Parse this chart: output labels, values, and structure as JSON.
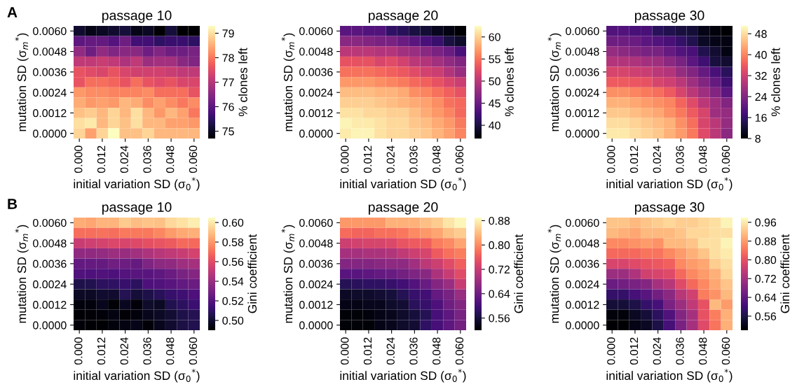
{
  "chart_data": [
    {
      "type": "heatmap",
      "title": "passage 10",
      "xlabel": "initial variation SD (σ$_{0}$$^{*}$)",
      "ylabel": "mutation SD (σ$_{m}$$^{*}$)",
      "clabel": "% clones left",
      "annotations": [
        "A"
      ],
      "categories": [
        "0.000",
        null,
        "0.012",
        null,
        "0.024",
        null,
        "0.036",
        null,
        "0.048",
        null,
        "0.060"
      ],
      "y_categories": [
        "0.0060",
        null,
        "0.0048",
        null,
        "0.0036",
        null,
        "0.0024",
        null,
        "0.0012",
        null,
        "0.0000"
      ],
      "clim": [
        74.7,
        79.3
      ],
      "cticks": [
        75,
        76,
        77,
        78,
        79
      ],
      "cells": [
        [
          75.1,
          74.9,
          75.0,
          75.1,
          75.2,
          74.9,
          75.0,
          74.7,
          75.2,
          74.7,
          74.7
        ],
        [
          76.0,
          76.1,
          76.1,
          75.9,
          76.2,
          75.7,
          75.7,
          75.5,
          75.6,
          75.6,
          75.5
        ],
        [
          76.6,
          76.2,
          76.6,
          76.4,
          76.5,
          76.5,
          76.2,
          76.4,
          76.2,
          76.2,
          76.3
        ],
        [
          77.1,
          77.1,
          77.2,
          77.1,
          76.9,
          77.1,
          76.7,
          76.8,
          76.8,
          76.5,
          76.4
        ],
        [
          77.6,
          77.5,
          77.4,
          77.6,
          77.4,
          77.3,
          77.3,
          77.3,
          77.2,
          77.1,
          77.1
        ],
        [
          77.6,
          77.9,
          77.9,
          77.8,
          77.6,
          77.9,
          77.6,
          77.5,
          77.6,
          77.4,
          77.4
        ],
        [
          78.3,
          78.2,
          78.2,
          78.1,
          78.1,
          78.1,
          78.2,
          77.9,
          77.9,
          77.9,
          77.6
        ],
        [
          78.5,
          78.3,
          78.4,
          78.3,
          78.6,
          78.5,
          78.2,
          78.4,
          78.2,
          78.0,
          78.2
        ],
        [
          78.7,
          78.8,
          78.6,
          78.9,
          78.6,
          79.0,
          78.6,
          78.3,
          78.6,
          78.4,
          78.0
        ],
        [
          79.0,
          79.1,
          78.6,
          78.9,
          78.7,
          79.0,
          78.6,
          78.6,
          78.4,
          78.4,
          78.3
        ],
        [
          78.9,
          78.4,
          78.9,
          79.3,
          78.7,
          78.7,
          78.9,
          78.6,
          78.6,
          78.6,
          78.6
        ]
      ]
    },
    {
      "type": "heatmap",
      "title": "passage 20",
      "xlabel": "initial variation SD (σ$_{0}$$^{*}$)",
      "ylabel": "mutation SD (σ$_{m}$$^{*}$)",
      "clabel": "% clones left",
      "categories": [
        "0.000",
        null,
        "0.012",
        null,
        "0.024",
        null,
        "0.036",
        null,
        "0.048",
        null,
        "0.060"
      ],
      "y_categories": [
        "0.0060",
        null,
        "0.0048",
        null,
        "0.0036",
        null,
        "0.0024",
        null,
        "0.0012",
        null,
        "0.0000"
      ],
      "clim": [
        37,
        62.5
      ],
      "cticks": [
        40,
        45,
        50,
        55,
        60
      ],
      "cells": [
        [
          44,
          44,
          43.5,
          43.5,
          41.5,
          41,
          40,
          39.5,
          38.5,
          37.8,
          37
        ],
        [
          47,
          47,
          46.5,
          46,
          46,
          45,
          44,
          43,
          42,
          40,
          39
        ],
        [
          50,
          50,
          50,
          49.5,
          49.5,
          48.5,
          48,
          47,
          46,
          45,
          43
        ],
        [
          53,
          53,
          53,
          52,
          52.5,
          51.5,
          50,
          49.5,
          48.5,
          47.5,
          46.5
        ],
        [
          55,
          55,
          55,
          54.5,
          54,
          53.5,
          52.5,
          51.5,
          51,
          49.5,
          48
        ],
        [
          57,
          57,
          57,
          56.5,
          56,
          55.5,
          54.5,
          54,
          53,
          52,
          51
        ],
        [
          59,
          59,
          59,
          58.5,
          58.5,
          58,
          56.5,
          56,
          55,
          54,
          53
        ],
        [
          60,
          60,
          60,
          59.5,
          59,
          58.5,
          58,
          57.5,
          56.5,
          55,
          54.5
        ],
        [
          61,
          61,
          60.5,
          60.5,
          60,
          60,
          59,
          58,
          57,
          56,
          54.5
        ],
        [
          62,
          61.5,
          61.5,
          61,
          60.5,
          60.5,
          59.5,
          59,
          58,
          57,
          55.5
        ],
        [
          61.5,
          62,
          62,
          61,
          60.5,
          60.5,
          60,
          59.5,
          58.5,
          57.5,
          56
        ]
      ]
    },
    {
      "type": "heatmap",
      "title": "passage 30",
      "xlabel": "initial variation SD (σ$_{0}$$^{*}$)",
      "ylabel": "mutation SD (σ$_{m}$$^{*}$)",
      "clabel": "% clones left",
      "categories": [
        "0.000",
        null,
        "0.012",
        null,
        "0.024",
        null,
        "0.036",
        null,
        "0.048",
        null,
        "0.060"
      ],
      "y_categories": [
        "0.0060",
        null,
        "0.0048",
        null,
        "0.0036",
        null,
        "0.0024",
        null,
        "0.0012",
        null,
        "0.0000"
      ],
      "clim": [
        8,
        51
      ],
      "cticks": [
        8,
        16,
        24,
        32,
        40,
        48
      ],
      "cells": [
        [
          19,
          19,
          18,
          18,
          15,
          14,
          13,
          12.5,
          10,
          9,
          8
        ],
        [
          22,
          22,
          21.5,
          20,
          19,
          18,
          16,
          14,
          11,
          10,
          9.5
        ],
        [
          26,
          25,
          24,
          23,
          23,
          21,
          19,
          18,
          14,
          12,
          9.5
        ],
        [
          29,
          29,
          28.5,
          27.5,
          27,
          25,
          23,
          20,
          17,
          13,
          12
        ],
        [
          33,
          33,
          32,
          31.5,
          30,
          29,
          26,
          24,
          21,
          18,
          15
        ],
        [
          36,
          36,
          35.5,
          35,
          33,
          32,
          30,
          27,
          24,
          21,
          17
        ],
        [
          41,
          41,
          40,
          39,
          38,
          36,
          33,
          30,
          27,
          24,
          20
        ],
        [
          44,
          44,
          43,
          42,
          41,
          40,
          37,
          34,
          30,
          27,
          24
        ],
        [
          46,
          46,
          45,
          44,
          43,
          41,
          39,
          36,
          33,
          27,
          26
        ],
        [
          48,
          48,
          47,
          46,
          45,
          44,
          41,
          38,
          33,
          30,
          26
        ],
        [
          49,
          49,
          48,
          47,
          46,
          44,
          42,
          39,
          34,
          30,
          25
        ]
      ]
    },
    {
      "type": "heatmap",
      "title": "passage 10",
      "xlabel": "initial variation SD (σ$_{0}$$^{*}$)",
      "ylabel": "mutation SD (σ$_{m}$$^{*}$)",
      "clabel": "Gini coefficient",
      "annotations": [
        "B"
      ],
      "categories": [
        "0.000",
        null,
        "0.012",
        null,
        "0.024",
        null,
        "0.036",
        null,
        "0.048",
        null,
        "0.060"
      ],
      "y_categories": [
        "0.0060",
        null,
        "0.0048",
        null,
        "0.0036",
        null,
        "0.0024",
        null,
        "0.0012",
        null,
        "0.0000"
      ],
      "clim": [
        0.49,
        0.605
      ],
      "cticks": [
        {
          "value": 0.5,
          "label": "0.50"
        },
        {
          "value": 0.52,
          "label": "0.52"
        },
        {
          "value": 0.54,
          "label": "0.54"
        },
        {
          "value": 0.56,
          "label": "0.56"
        },
        {
          "value": 0.58,
          "label": "0.58"
        },
        {
          "value": 0.6,
          "label": "0.60"
        }
      ],
      "cells": [
        [
          0.585,
          0.583,
          0.587,
          0.587,
          0.592,
          0.589,
          0.591,
          0.59,
          0.596,
          0.598,
          0.601
        ],
        [
          0.57,
          0.57,
          0.571,
          0.57,
          0.573,
          0.573,
          0.573,
          0.576,
          0.581,
          0.584,
          0.586
        ],
        [
          0.552,
          0.554,
          0.556,
          0.558,
          0.557,
          0.559,
          0.561,
          0.563,
          0.565,
          0.569,
          0.569
        ],
        [
          0.537,
          0.537,
          0.538,
          0.54,
          0.539,
          0.542,
          0.545,
          0.548,
          0.55,
          0.552,
          0.556
        ],
        [
          0.524,
          0.525,
          0.525,
          0.528,
          0.527,
          0.525,
          0.532,
          0.536,
          0.537,
          0.541,
          0.543
        ],
        [
          0.519,
          0.518,
          0.519,
          0.518,
          0.52,
          0.521,
          0.521,
          0.523,
          0.526,
          0.53,
          0.534
        ],
        [
          0.505,
          0.506,
          0.509,
          0.51,
          0.512,
          0.509,
          0.518,
          0.519,
          0.521,
          0.524,
          0.526
        ],
        [
          0.498,
          0.498,
          0.5,
          0.5,
          0.507,
          0.502,
          0.505,
          0.508,
          0.512,
          0.514,
          0.518
        ],
        [
          0.493,
          0.493,
          0.496,
          0.491,
          0.497,
          0.492,
          0.499,
          0.498,
          0.506,
          0.509,
          0.513
        ],
        [
          0.49,
          0.491,
          0.492,
          0.494,
          0.491,
          0.493,
          0.496,
          0.498,
          0.501,
          0.505,
          0.507
        ],
        [
          0.492,
          0.49,
          0.49,
          0.493,
          0.494,
          0.495,
          0.492,
          0.496,
          0.5,
          0.504,
          0.506
        ]
      ]
    },
    {
      "type": "heatmap",
      "title": "passage 20",
      "xlabel": "initial variation SD (σ$_{0}$$^{*}$)",
      "ylabel": "mutation SD (σ$_{m}$$^{*}$)",
      "clabel": "Gini coefficient",
      "categories": [
        "0.000",
        null,
        "0.012",
        null,
        "0.024",
        null,
        "0.036",
        null,
        "0.048",
        null,
        "0.060"
      ],
      "y_categories": [
        "0.0060",
        null,
        "0.0048",
        null,
        "0.0036",
        null,
        "0.0024",
        null,
        "0.0012",
        null,
        "0.0000"
      ],
      "clim": [
        0.52,
        0.89
      ],
      "cticks": [
        0.56,
        0.64,
        0.72,
        {
          "value": 0.8,
          "label": "0.80"
        },
        0.88
      ],
      "cells": [
        [
          0.81,
          0.81,
          0.81,
          0.81,
          0.83,
          0.83,
          0.83,
          0.84,
          0.85,
          0.87,
          0.885
        ],
        [
          0.775,
          0.77,
          0.77,
          0.78,
          0.78,
          0.785,
          0.8,
          0.81,
          0.82,
          0.84,
          0.85
        ],
        [
          0.725,
          0.73,
          0.735,
          0.735,
          0.74,
          0.755,
          0.76,
          0.765,
          0.79,
          0.8,
          0.82
        ],
        [
          0.69,
          0.69,
          0.695,
          0.695,
          0.7,
          0.715,
          0.725,
          0.735,
          0.76,
          0.78,
          0.79
        ],
        [
          0.66,
          0.66,
          0.66,
          0.665,
          0.67,
          0.67,
          0.685,
          0.71,
          0.725,
          0.745,
          0.765
        ],
        [
          0.62,
          0.62,
          0.625,
          0.63,
          0.635,
          0.645,
          0.655,
          0.665,
          0.695,
          0.72,
          0.745
        ],
        [
          0.575,
          0.58,
          0.585,
          0.585,
          0.59,
          0.6,
          0.615,
          0.635,
          0.66,
          0.68,
          0.72
        ],
        [
          0.545,
          0.55,
          0.55,
          0.555,
          0.56,
          0.575,
          0.59,
          0.6,
          0.63,
          0.65,
          0.68
        ],
        [
          0.535,
          0.535,
          0.54,
          0.54,
          0.55,
          0.555,
          0.58,
          0.59,
          0.61,
          0.64,
          0.66
        ],
        [
          0.525,
          0.525,
          0.53,
          0.535,
          0.54,
          0.55,
          0.56,
          0.575,
          0.605,
          0.625,
          0.65
        ],
        [
          0.525,
          0.525,
          0.525,
          0.535,
          0.54,
          0.55,
          0.555,
          0.585,
          0.605,
          0.625,
          0.645
        ]
      ]
    },
    {
      "type": "heatmap",
      "title": "passage 30",
      "xlabel": "initial variation SD (σ$_{0}$$^{*}$)",
      "ylabel": "mutation SD (σ$_{m}$$^{*}$)",
      "clabel": "Gini coefficient",
      "categories": [
        "0.000",
        null,
        "0.012",
        null,
        "0.024",
        null,
        "0.036",
        null,
        "0.048",
        null,
        "0.060"
      ],
      "y_categories": [
        "0.0060",
        null,
        "0.0048",
        null,
        "0.0036",
        null,
        "0.0024",
        null,
        "0.0012",
        null,
        "0.0000"
      ],
      "clim": [
        0.5,
        0.98
      ],
      "cticks": [
        0.56,
        0.64,
        0.72,
        {
          "value": 0.8,
          "label": "0.80"
        },
        0.88,
        0.96
      ],
      "cells": [
        [
          0.92,
          0.92,
          0.91,
          0.92,
          0.93,
          0.94,
          0.93,
          0.93,
          0.94,
          0.95,
          0.97
        ],
        [
          0.91,
          0.9,
          0.89,
          0.91,
          0.91,
          0.91,
          0.92,
          0.94,
          0.94,
          0.95,
          0.95
        ],
        [
          0.86,
          0.86,
          0.87,
          0.88,
          0.87,
          0.91,
          0.91,
          0.92,
          0.95,
          0.95,
          0.97
        ],
        [
          0.83,
          0.83,
          0.83,
          0.84,
          0.84,
          0.86,
          0.88,
          0.9,
          0.92,
          0.95,
          0.96
        ],
        [
          0.78,
          0.78,
          0.79,
          0.8,
          0.81,
          0.82,
          0.86,
          0.88,
          0.89,
          0.93,
          0.95
        ],
        [
          0.71,
          0.71,
          0.73,
          0.77,
          0.78,
          0.79,
          0.83,
          0.86,
          0.88,
          0.9,
          0.94
        ],
        [
          0.65,
          0.66,
          0.67,
          0.68,
          0.72,
          0.74,
          0.79,
          0.83,
          0.86,
          0.89,
          0.92
        ],
        [
          0.59,
          0.59,
          0.61,
          0.63,
          0.66,
          0.69,
          0.74,
          0.77,
          0.85,
          0.87,
          0.91
        ],
        [
          0.55,
          0.55,
          0.56,
          0.59,
          0.61,
          0.67,
          0.71,
          0.75,
          0.8,
          0.91,
          0.88
        ],
        [
          0.51,
          0.51,
          0.53,
          0.55,
          0.58,
          0.62,
          0.68,
          0.72,
          0.8,
          0.85,
          0.9
        ],
        [
          0.5,
          0.5,
          0.52,
          0.53,
          0.56,
          0.61,
          0.67,
          0.72,
          0.79,
          0.84,
          0.9
        ]
      ]
    }
  ]
}
